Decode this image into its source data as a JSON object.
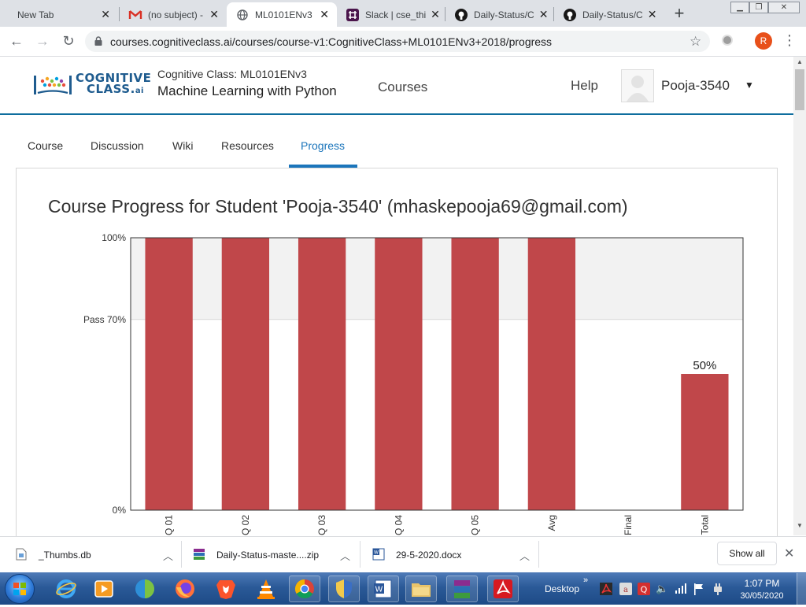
{
  "browser": {
    "tabs": [
      {
        "title": "New Tab",
        "icon": "none"
      },
      {
        "title": "(no subject) -",
        "icon": "gmail-icon"
      },
      {
        "title": "ML0101ENv3",
        "icon": "globe-icon"
      },
      {
        "title": "Slack | cse_thi",
        "icon": "slack-icon"
      },
      {
        "title": "Daily-Status/C",
        "icon": "github-icon"
      },
      {
        "title": "Daily-Status/C",
        "icon": "github-icon"
      }
    ],
    "new_tab_glyph": "+",
    "url": "courses.cognitiveclass.ai/courses/course-v1:CognitiveClass+ML0101ENv3+2018/progress",
    "profile_initial": "R"
  },
  "site": {
    "logo_line1": "COGNITIVE",
    "logo_line2": "CLASS.",
    "logo_suffix": "ai",
    "course_org": "Cognitive Class: ML0101ENv3",
    "course_name": "Machine Learning with Python",
    "nav_courses": "Courses",
    "nav_help": "Help",
    "username": "Pooja-3540"
  },
  "course_tabs": [
    {
      "label": "Course",
      "active": false
    },
    {
      "label": "Discussion",
      "active": false
    },
    {
      "label": "Wiki",
      "active": false
    },
    {
      "label": "Resources",
      "active": false
    },
    {
      "label": "Progress",
      "active": true
    }
  ],
  "progress": {
    "title": "Course Progress for Student 'Pooja-3540' (mhaskepooja69@gmail.com)"
  },
  "chart_data": {
    "type": "bar",
    "title": "",
    "xlabel": "",
    "ylabel": "",
    "ylim": [
      0,
      100
    ],
    "categories": [
      "Q 01",
      "Q 02",
      "Q 03",
      "Q 04",
      "Q 05",
      "Avg",
      "Final",
      "Total"
    ],
    "values": [
      100,
      100,
      100,
      100,
      100,
      100,
      0,
      50
    ],
    "y_ticks": [
      {
        "value": 100,
        "label": "100%"
      },
      {
        "value": 70,
        "label": "Pass 70%"
      },
      {
        "value": 0,
        "label": "0%"
      }
    ],
    "pass_threshold": 70,
    "data_labels": [
      {
        "category": "Total",
        "label": "50%"
      }
    ],
    "bar_color": "#c0474a",
    "pass_band_color": "#f2f2f2",
    "grid": false
  },
  "downloads": {
    "items": [
      {
        "name": "_Thumbs.db"
      },
      {
        "name": "Daily-Status-maste....zip"
      },
      {
        "name": "29-5-2020.docx"
      }
    ],
    "show_all": "Show all"
  },
  "taskbar": {
    "desktop_label": "Desktop",
    "chevron": "»",
    "time": "1:07 PM",
    "date": "30/05/2020"
  }
}
